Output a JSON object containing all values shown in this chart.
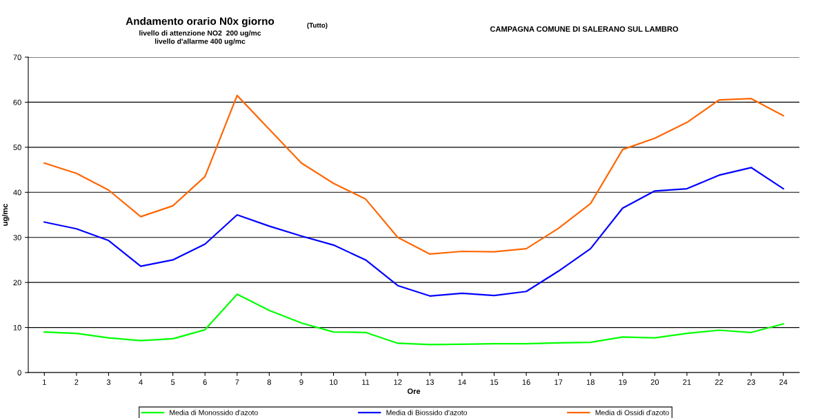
{
  "chart_data": {
    "type": "line",
    "title": "Andamento orario N0x giorno",
    "subtitle": "livello di attenzione NO2  200 ug/mc\nlivello d'allarme 400 ug/mc",
    "annotations": [
      "(Tutto)",
      "CAMPAGNA COMUNE DI SALERANO SUL LAMBRO"
    ],
    "xlabel": "Ore",
    "ylabel": "ug/mc",
    "categories": [
      "1",
      "2",
      "3",
      "4",
      "5",
      "6",
      "7",
      "8",
      "9",
      "10",
      "11",
      "12",
      "13",
      "14",
      "15",
      "16",
      "17",
      "18",
      "19",
      "20",
      "21",
      "22",
      "23",
      "24"
    ],
    "series": [
      {
        "name": "Media di Monossido d'azoto",
        "color": "#00ff00",
        "values": [
          9,
          8.7,
          7.7,
          7.1,
          7.5,
          9.5,
          17.4,
          13.8,
          11,
          9,
          8.9,
          6.5,
          6.2,
          6.3,
          6.4,
          6.4,
          6.6,
          6.7,
          7.9,
          7.7,
          8.7,
          9.4,
          8.9,
          10.8
        ]
      },
      {
        "name": "Media di Biossido d'azoto",
        "color": "#0000ff",
        "values": [
          33.4,
          31.9,
          29.3,
          23.6,
          25,
          28.5,
          35,
          32.5,
          30.3,
          28.3,
          25,
          19.3,
          17,
          17.6,
          17.1,
          18,
          22.5,
          27.5,
          36.5,
          40.3,
          40.8,
          43.8,
          45.5,
          40.8
        ]
      },
      {
        "name": "Media di Ossidi d'azoto",
        "color": "#ff6600",
        "values": [
          46.5,
          44.2,
          40.5,
          34.6,
          37,
          43.5,
          61.5,
          54,
          46.5,
          42,
          38.5,
          30,
          26.3,
          26.9,
          26.8,
          27.5,
          32,
          37.5,
          49.5,
          52,
          55.5,
          60.5,
          60.8,
          57
        ]
      }
    ],
    "ylim": [
      0,
      70
    ],
    "yticks": [
      0,
      10,
      20,
      30,
      40,
      50,
      60,
      70
    ],
    "grid": "y",
    "legend": "bottom",
    "marker": "none",
    "line_style": "solid"
  }
}
